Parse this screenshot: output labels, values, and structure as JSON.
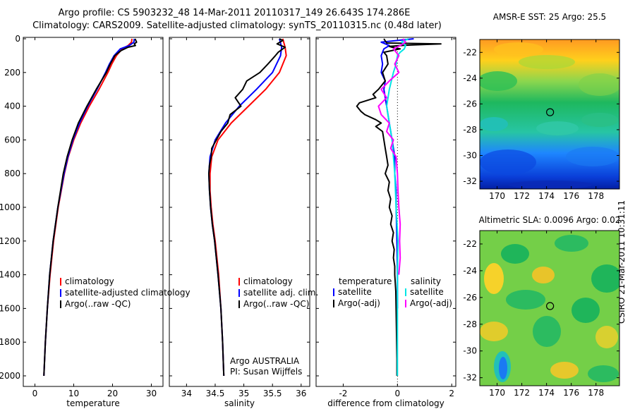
{
  "title_line1": "Argo profile: CS 5903232_48 14-Mar-2011 20110317_149 26.643S 174.286E",
  "title_line2": "Climatology: CARS2009. Satellite-adjusted climatology: synTS_20110315.nc (0.48d later)",
  "watermark": "CSIRO 21-Mar-2011 10:31:11",
  "colors": {
    "climatology": "#ff0000",
    "satellite": "#0000ff",
    "argo": "#000000",
    "sat_salinity": "#00e5e5",
    "argo_salinity": "#ff00ff"
  },
  "chart_data": [
    {
      "type": "line",
      "name": "temperature",
      "xlabel": "temperature",
      "xlim": [
        -3,
        33
      ],
      "xticks": [
        "0",
        "10",
        "20",
        "30"
      ],
      "ylim": [
        0,
        2070
      ],
      "yticks": [
        "0",
        "200",
        "400",
        "600",
        "800",
        "1000",
        "1200",
        "1400",
        "1600",
        "1800",
        "2000"
      ],
      "legend": [
        "climatology",
        "satellite-adjusted climatology",
        "Argo(..raw -QC)"
      ],
      "series": [
        {
          "name": "climatology",
          "color": "#ff0000",
          "depth": [
            0,
            20,
            40,
            60,
            100,
            150,
            200,
            300,
            400,
            500,
            600,
            700,
            800,
            1000,
            1200,
            1400,
            1600,
            1800,
            2000
          ],
          "values": [
            25.0,
            24.9,
            24.0,
            22.5,
            21.0,
            19.8,
            18.8,
            16.5,
            14.0,
            11.8,
            10.0,
            8.6,
            7.6,
            6.0,
            4.8,
            3.9,
            3.2,
            2.7,
            2.3
          ]
        },
        {
          "name": "satellite-adjusted climatology",
          "color": "#0000ff",
          "depth": [
            0,
            20,
            40,
            60,
            100,
            150,
            200,
            300,
            400,
            500,
            600,
            700,
            800,
            1000,
            1200,
            1400,
            1600,
            1800,
            2000
          ],
          "values": [
            25.6,
            25.5,
            24.3,
            22.0,
            20.4,
            19.2,
            18.2,
            16.0,
            13.6,
            11.5,
            9.8,
            8.5,
            7.5,
            5.9,
            4.7,
            3.8,
            3.2,
            2.7,
            2.3
          ]
        },
        {
          "name": "Argo(..raw -QC)",
          "color": "#000000",
          "depth": [
            0,
            20,
            30,
            40,
            50,
            70,
            100,
            150,
            200,
            300,
            400,
            500,
            600,
            700,
            800,
            1000,
            1200,
            1400,
            1600,
            1800,
            2000
          ],
          "values": [
            25.8,
            26.2,
            25.6,
            25.9,
            24.0,
            22.2,
            20.6,
            19.4,
            18.4,
            15.8,
            13.4,
            11.2,
            9.6,
            8.3,
            7.3,
            5.9,
            4.7,
            3.8,
            3.2,
            2.7,
            2.3
          ]
        }
      ]
    },
    {
      "type": "line",
      "name": "salinity",
      "xlabel": "salinity",
      "xlim": [
        33.7,
        36.15
      ],
      "xticks": [
        "34",
        "34.5",
        "35",
        "35.5",
        "36"
      ],
      "ylim": [
        0,
        2070
      ],
      "legend": [
        "climatology",
        "satellite adj. clim.",
        "Argo(..raw -QC)"
      ],
      "annotation": [
        "Argo AUSTRALIA",
        "PI: Susan Wijffels"
      ],
      "series": [
        {
          "name": "climatology",
          "color": "#ff0000",
          "depth": [
            0,
            50,
            100,
            200,
            300,
            400,
            500,
            600,
            700,
            800,
            900,
            1000,
            1100,
            1200,
            1400,
            1600,
            1800,
            2000
          ],
          "values": [
            35.68,
            35.72,
            35.74,
            35.62,
            35.38,
            35.08,
            34.78,
            34.55,
            34.44,
            34.41,
            34.41,
            34.43,
            34.46,
            34.5,
            34.56,
            34.6,
            34.63,
            34.65
          ]
        },
        {
          "name": "satellite adj. clim.",
          "color": "#0000ff",
          "depth": [
            0,
            50,
            100,
            200,
            300,
            400,
            500,
            600,
            700,
            800,
            900,
            1000,
            1100,
            1200,
            1400,
            1600,
            1800,
            2000
          ],
          "values": [
            35.62,
            35.66,
            35.64,
            35.5,
            35.22,
            34.92,
            34.68,
            34.5,
            34.41,
            34.39,
            34.4,
            34.42,
            34.45,
            34.49,
            34.55,
            34.6,
            34.63,
            34.65
          ]
        },
        {
          "name": "Argo(..raw -QC)",
          "color": "#000000",
          "depth": [
            0,
            10,
            30,
            50,
            80,
            100,
            150,
            200,
            250,
            300,
            350,
            400,
            450,
            500,
            550,
            600,
            650,
            700,
            750,
            800,
            900,
            1000,
            1100,
            1200,
            1400,
            1600,
            1800,
            2000
          ],
          "values": [
            35.62,
            35.68,
            35.58,
            35.72,
            35.6,
            35.55,
            35.42,
            35.28,
            35.05,
            34.98,
            34.85,
            34.95,
            34.76,
            34.72,
            34.6,
            34.52,
            34.44,
            34.43,
            34.4,
            34.39,
            34.4,
            34.42,
            34.45,
            34.49,
            34.55,
            34.6,
            34.63,
            34.65
          ]
        }
      ]
    },
    {
      "type": "line",
      "name": "difference from climatology",
      "xlabel": "difference from climatology",
      "xlim": [
        -3.0,
        2.15
      ],
      "xticks": [
        "-2",
        "0",
        "2"
      ],
      "ylim": [
        0,
        2070
      ],
      "legend_headers": [
        "temperature",
        "salinity"
      ],
      "legend": [
        "satellite",
        "Argo(-adj)",
        "satellite",
        "Argo(-adj)"
      ],
      "series": [
        {
          "name": "temperature satellite",
          "color": "#0000ff",
          "depth": [
            0,
            20,
            40,
            60,
            80,
            100,
            150,
            200,
            250,
            300,
            400,
            500,
            600,
            700,
            800,
            900,
            1000,
            1200,
            1400,
            1600
          ],
          "values": [
            0.6,
            -0.6,
            -0.3,
            -0.5,
            -0.55,
            -0.6,
            -0.55,
            -0.6,
            -0.45,
            -0.5,
            -0.4,
            -0.3,
            -0.2,
            -0.1,
            -0.1,
            -0.05,
            -0.05,
            -0.02,
            0.0,
            0.0
          ]
        },
        {
          "name": "temperature Argo(-adj)",
          "color": "#000000",
          "depth": [
            0,
            25,
            30,
            38,
            45,
            50,
            60,
            80,
            100,
            150,
            200,
            250,
            300,
            330,
            350,
            380,
            400,
            430,
            450,
            480,
            500,
            520,
            550,
            600,
            650,
            700,
            750,
            800,
            850,
            900,
            950,
            1000,
            1050,
            1100,
            1150,
            1200,
            1250,
            1300,
            1350,
            1400,
            1500,
            1600,
            1700,
            1800,
            1900,
            2000
          ],
          "values": [
            -0.5,
            -0.4,
            1.6,
            0.3,
            -0.3,
            -0.2,
            0.1,
            -0.5,
            -0.4,
            -0.35,
            -0.55,
            -0.45,
            -0.7,
            -0.9,
            -0.8,
            -1.4,
            -1.5,
            -1.35,
            -1.2,
            -0.8,
            -0.6,
            -0.8,
            -0.55,
            -0.5,
            -0.45,
            -0.4,
            -0.35,
            -0.45,
            -0.3,
            -0.35,
            -0.25,
            -0.3,
            -0.2,
            -0.25,
            -0.15,
            -0.2,
            -0.12,
            -0.15,
            -0.1,
            -0.1,
            -0.06,
            -0.05,
            -0.04,
            -0.03,
            -0.02,
            -0.02
          ]
        },
        {
          "name": "salinity satellite",
          "color": "#00e5e5",
          "depth": [
            0,
            20,
            40,
            60,
            80,
            100,
            150,
            200,
            300,
            400,
            500,
            600,
            800,
            1000,
            1200,
            1400,
            1600,
            1800,
            2000
          ],
          "values": [
            0.4,
            0.15,
            0.3,
            0.25,
            0.1,
            0.0,
            -0.05,
            -0.15,
            -0.3,
            -0.4,
            -0.3,
            -0.2,
            -0.1,
            -0.05,
            0.02,
            0.0,
            0.0,
            0.0,
            0.0
          ]
        },
        {
          "name": "salinity Argo(-adj)",
          "color": "#ff00ff",
          "depth": [
            0,
            20,
            40,
            60,
            100,
            150,
            200,
            250,
            300,
            350,
            400,
            450,
            500,
            550,
            600,
            650,
            700,
            800,
            900,
            1000,
            1100,
            1200,
            1300,
            1400
          ],
          "values": [
            0.2,
            0.3,
            0.1,
            -0.15,
            0.05,
            -0.1,
            0.05,
            -0.3,
            -0.6,
            -0.4,
            -0.7,
            -0.6,
            -0.3,
            -0.4,
            -0.15,
            -0.25,
            -0.05,
            0.0,
            0.02,
            0.05,
            0.1,
            0.08,
            0.1,
            0.05
          ]
        }
      ]
    },
    {
      "type": "heatmap",
      "name": "AMSR-E SST",
      "title": "AMSR-E SST: 25  Argo: 25.5",
      "xticks": [
        "170",
        "172",
        "174",
        "176",
        "178"
      ],
      "yticks": [
        "-22",
        "-24",
        "-26",
        "-28",
        "-30",
        "-32"
      ],
      "xlim": [
        168.6,
        179.9
      ],
      "ylim": [
        -32.6,
        -21.0
      ],
      "marker": {
        "lon": 174.286,
        "lat": -26.643
      }
    },
    {
      "type": "heatmap",
      "name": "Altimetric SLA",
      "title": "Altimetric SLA: 0.0096  Argo: 0.02",
      "xticks": [
        "170",
        "172",
        "174",
        "176",
        "178"
      ],
      "yticks": [
        "-22",
        "-24",
        "-26",
        "-28",
        "-30",
        "-32"
      ],
      "xlim": [
        168.6,
        179.9
      ],
      "ylim": [
        -32.6,
        -21.0
      ],
      "marker": {
        "lon": 174.286,
        "lat": -26.643
      }
    }
  ]
}
